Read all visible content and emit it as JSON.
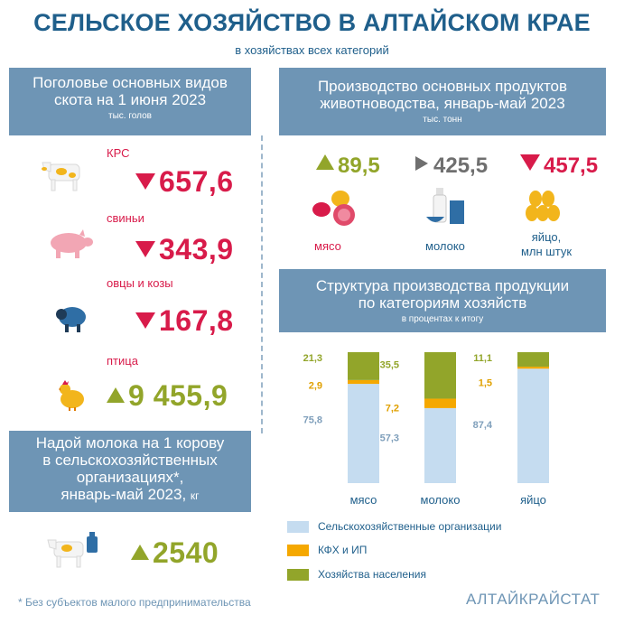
{
  "header": {
    "title": "СЕЛЬСКОЕ ХОЗЯЙСТВО В АЛТАЙСКОМ КРАЕ",
    "subtitle": "в хозяйствах всех категорий"
  },
  "livestock": {
    "title_line1": "Поголовье основных видов",
    "title_line2": "скота на 1 июня  2023",
    "unit": "тыс. голов",
    "items": [
      {
        "label": "КРС",
        "value": "657,6",
        "trend": "down",
        "icon": "cow-icon"
      },
      {
        "label": "свиньи",
        "value": "343,9",
        "trend": "down",
        "icon": "pig-icon"
      },
      {
        "label": "овцы и козы",
        "value": "167,8",
        "trend": "down",
        "icon": "sheep-icon"
      },
      {
        "label": "птица",
        "value": "9 455,9",
        "trend": "up",
        "icon": "chicken-icon"
      }
    ]
  },
  "milk_yield": {
    "line1": "Надой молока на 1 корову",
    "line2": "в сельскохозяйственных",
    "line3": "организациях*,",
    "line4": "январь-май 2023,",
    "unit": "кг",
    "value": "2540",
    "trend": "up",
    "icon": "cow-milk-icon"
  },
  "production": {
    "title_line1": "Производство основных продуктов",
    "title_line2": "животноводства, январь-май 2023",
    "unit": "тыс. тонн",
    "items": [
      {
        "value": "89,5",
        "trend": "up",
        "label1": "мясо",
        "label2": "",
        "icon": "meat-icon"
      },
      {
        "value": "425,5",
        "trend": "flat",
        "label1": "молоко",
        "label2": "",
        "icon": "milk-icon"
      },
      {
        "value": "457,5",
        "trend": "down",
        "label1": "яйцо,",
        "label2": "млн штук",
        "icon": "eggs-icon"
      }
    ]
  },
  "structure": {
    "title_line1": "Структура производства продукции",
    "title_line2": "по категориям хозяйств",
    "unit": "в процентах к итогу"
  },
  "chart_data": {
    "type": "bar",
    "stacked": true,
    "categories": [
      "мясо",
      "молоко",
      "яйцо"
    ],
    "series": [
      {
        "name": "Сельскохозяйственные  организации",
        "values": [
          75.8,
          57.3,
          87.4
        ],
        "labels": [
          "75,8",
          "57,3",
          "87,4"
        ],
        "color": "#c5dcf0"
      },
      {
        "name": "КФХ и ИП",
        "values": [
          2.9,
          7.2,
          1.5
        ],
        "labels": [
          "2,9",
          "7,2",
          "1,5"
        ],
        "color": "#f5a800"
      },
      {
        "name": "Хозяйства  населения",
        "values": [
          21.3,
          35.5,
          11.1
        ],
        "labels": [
          "21,3",
          "35,5",
          "11,1"
        ],
        "color": "#92a52a"
      }
    ],
    "ylim": [
      0,
      100
    ],
    "label_colors": [
      "#7f9fbb",
      "#e0a000",
      "#92a52a"
    ]
  },
  "footer": {
    "footnote": "* Без субъектов  малого  предпринимательства",
    "brand": "АЛТАЙКРАЙСТАТ"
  }
}
